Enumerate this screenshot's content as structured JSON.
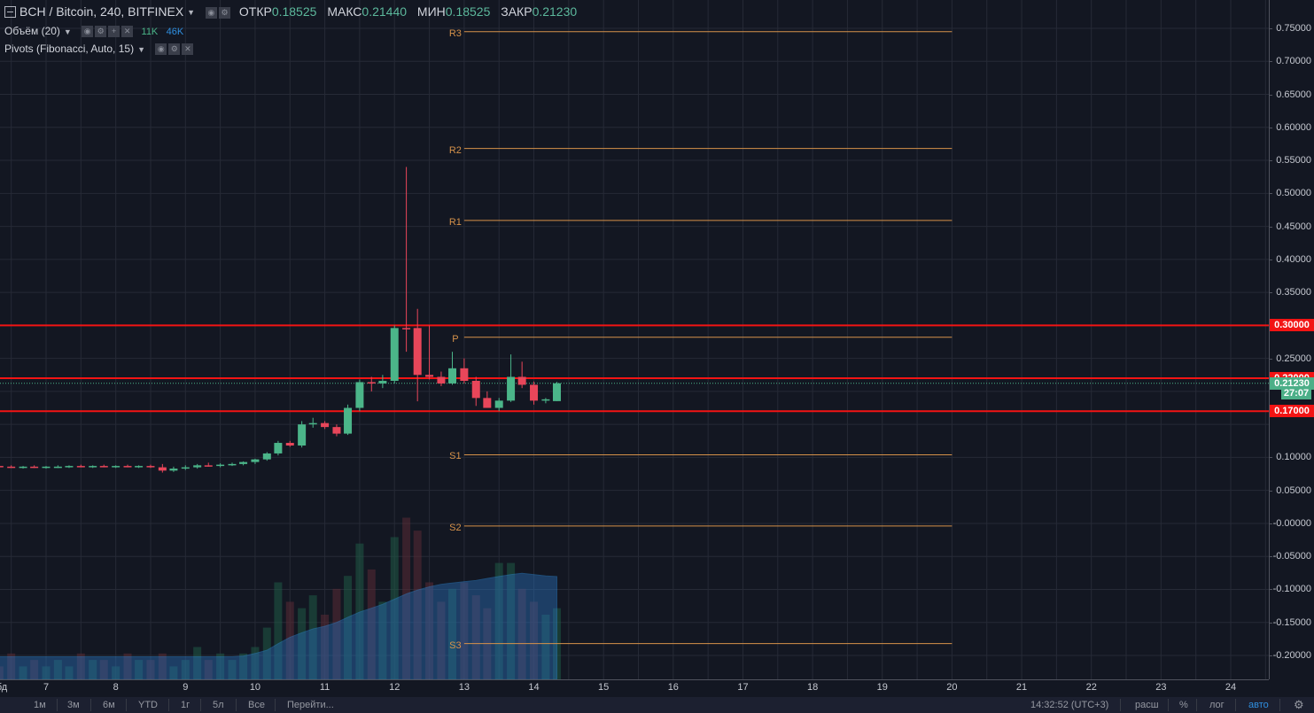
{
  "legend": {
    "symbol": "BCH / Bitcoin, 240, BITFINEX",
    "open_label": "ОТКР",
    "open": "0.18525",
    "high_label": "МАКС",
    "high": "0.21440",
    "low_label": "МИН",
    "low": "0.18525",
    "close_label": "ЗАКР",
    "close": "0.21230"
  },
  "indicators": {
    "volume_name": "Объём (20)",
    "volume_val1": "11K",
    "volume_val2": "46K",
    "pivots_name": "Pivots (Fibonacci, Auto, 15)"
  },
  "price_axis": [
    "0.75000",
    "0.70000",
    "0.65000",
    "0.60000",
    "0.55000",
    "0.50000",
    "0.45000",
    "0.40000",
    "0.35000",
    "0.25000",
    "0.10000",
    "0.05000",
    "-0.00000",
    "-0.05000",
    "-0.10000",
    "-0.15000",
    "-0.20000"
  ],
  "price_labels": [
    {
      "text": "0.30000",
      "value": 0.3,
      "color": "#f21414"
    },
    {
      "text": "0.22000",
      "value": 0.22,
      "color": "#f21414"
    },
    {
      "text": "0.21230",
      "value": 0.2123,
      "color": "#4caf88"
    },
    {
      "text": "27:07",
      "value": 0.197,
      "color": "#4caf88"
    },
    {
      "text": "0.17000",
      "value": 0.17,
      "color": "#f21414"
    }
  ],
  "time_axis": [
    "7",
    "8",
    "9",
    "10",
    "11",
    "12",
    "13",
    "14",
    "15",
    "16",
    "17",
    "18",
    "19",
    "20",
    "21",
    "22",
    "23",
    "24"
  ],
  "time_axis_partial": "бд",
  "pivots": [
    {
      "label": "R3",
      "value": 0.745
    },
    {
      "label": "R2",
      "value": 0.568
    },
    {
      "label": "R1",
      "value": 0.459
    },
    {
      "label": "P",
      "value": 0.282
    },
    {
      "label": "S1",
      "value": 0.104
    },
    {
      "label": "S2",
      "value": -0.004
    },
    {
      "label": "S3",
      "value": -0.182
    }
  ],
  "hlines": [
    0.3,
    0.22,
    0.17
  ],
  "colors": {
    "up": "#4bb589",
    "down": "#e8465a",
    "hline": "#f21414",
    "pivot": "#d6924a",
    "grid": "#262a36"
  },
  "bottom_bar": {
    "ranges": [
      "1м",
      "3м",
      "6м",
      "YTD",
      "1г",
      "5л",
      "Все"
    ],
    "goto": "Перейти...",
    "time": "14:32:52 (UTC+3)",
    "opt_ext": "расш",
    "opt_pct": "%",
    "opt_log": "лог",
    "opt_auto": "авто"
  },
  "chart_data": {
    "type": "candlestick",
    "x_unit": "day",
    "candles": [
      {
        "t": 6.0,
        "o": 0.086,
        "h": 0.088,
        "l": 0.084,
        "c": 0.086
      },
      {
        "t": 6.17,
        "o": 0.086,
        "h": 0.088,
        "l": 0.084,
        "c": 0.087
      },
      {
        "t": 6.33,
        "o": 0.087,
        "h": 0.089,
        "l": 0.085,
        "c": 0.086
      },
      {
        "t": 6.5,
        "o": 0.086,
        "h": 0.088,
        "l": 0.084,
        "c": 0.085
      },
      {
        "t": 6.67,
        "o": 0.085,
        "h": 0.087,
        "l": 0.083,
        "c": 0.086
      },
      {
        "t": 6.83,
        "o": 0.086,
        "h": 0.088,
        "l": 0.084,
        "c": 0.085
      },
      {
        "t": 7.0,
        "o": 0.085,
        "h": 0.087,
        "l": 0.083,
        "c": 0.086
      },
      {
        "t": 7.17,
        "o": 0.086,
        "h": 0.088,
        "l": 0.084,
        "c": 0.086
      },
      {
        "t": 7.33,
        "o": 0.086,
        "h": 0.088,
        "l": 0.084,
        "c": 0.087
      },
      {
        "t": 7.5,
        "o": 0.087,
        "h": 0.089,
        "l": 0.085,
        "c": 0.086
      },
      {
        "t": 7.67,
        "o": 0.086,
        "h": 0.088,
        "l": 0.084,
        "c": 0.087
      },
      {
        "t": 7.83,
        "o": 0.087,
        "h": 0.089,
        "l": 0.085,
        "c": 0.086
      },
      {
        "t": 8.0,
        "o": 0.086,
        "h": 0.088,
        "l": 0.084,
        "c": 0.087
      },
      {
        "t": 8.17,
        "o": 0.087,
        "h": 0.089,
        "l": 0.085,
        "c": 0.086
      },
      {
        "t": 8.33,
        "o": 0.086,
        "h": 0.088,
        "l": 0.084,
        "c": 0.087
      },
      {
        "t": 8.5,
        "o": 0.087,
        "h": 0.089,
        "l": 0.084,
        "c": 0.085
      },
      {
        "t": 8.67,
        "o": 0.085,
        "h": 0.09,
        "l": 0.077,
        "c": 0.08
      },
      {
        "t": 8.83,
        "o": 0.08,
        "h": 0.086,
        "l": 0.078,
        "c": 0.083
      },
      {
        "t": 9.0,
        "o": 0.083,
        "h": 0.088,
        "l": 0.081,
        "c": 0.085
      },
      {
        "t": 9.17,
        "o": 0.085,
        "h": 0.09,
        "l": 0.083,
        "c": 0.088
      },
      {
        "t": 9.33,
        "o": 0.088,
        "h": 0.092,
        "l": 0.086,
        "c": 0.087
      },
      {
        "t": 9.5,
        "o": 0.087,
        "h": 0.091,
        "l": 0.085,
        "c": 0.089
      },
      {
        "t": 9.67,
        "o": 0.089,
        "h": 0.092,
        "l": 0.087,
        "c": 0.09
      },
      {
        "t": 9.83,
        "o": 0.09,
        "h": 0.094,
        "l": 0.088,
        "c": 0.093
      },
      {
        "t": 10.0,
        "o": 0.093,
        "h": 0.098,
        "l": 0.09,
        "c": 0.097
      },
      {
        "t": 10.17,
        "o": 0.097,
        "h": 0.108,
        "l": 0.095,
        "c": 0.106
      },
      {
        "t": 10.33,
        "o": 0.106,
        "h": 0.125,
        "l": 0.103,
        "c": 0.122
      },
      {
        "t": 10.5,
        "o": 0.122,
        "h": 0.125,
        "l": 0.116,
        "c": 0.118
      },
      {
        "t": 10.67,
        "o": 0.118,
        "h": 0.155,
        "l": 0.115,
        "c": 0.15
      },
      {
        "t": 10.83,
        "o": 0.15,
        "h": 0.16,
        "l": 0.145,
        "c": 0.152
      },
      {
        "t": 11.0,
        "o": 0.152,
        "h": 0.155,
        "l": 0.143,
        "c": 0.146
      },
      {
        "t": 11.17,
        "o": 0.146,
        "h": 0.15,
        "l": 0.132,
        "c": 0.136
      },
      {
        "t": 11.33,
        "o": 0.136,
        "h": 0.18,
        "l": 0.134,
        "c": 0.175
      },
      {
        "t": 11.5,
        "o": 0.175,
        "h": 0.218,
        "l": 0.17,
        "c": 0.214
      },
      {
        "t": 11.67,
        "o": 0.214,
        "h": 0.222,
        "l": 0.2,
        "c": 0.212
      },
      {
        "t": 11.83,
        "o": 0.212,
        "h": 0.225,
        "l": 0.205,
        "c": 0.216
      },
      {
        "t": 12.0,
        "o": 0.216,
        "h": 0.3,
        "l": 0.212,
        "c": 0.296
      },
      {
        "t": 12.17,
        "o": 0.296,
        "h": 0.54,
        "l": 0.26,
        "c": 0.295
      },
      {
        "t": 12.33,
        "o": 0.296,
        "h": 0.325,
        "l": 0.185,
        "c": 0.225
      },
      {
        "t": 12.5,
        "o": 0.225,
        "h": 0.3,
        "l": 0.218,
        "c": 0.222
      },
      {
        "t": 12.67,
        "o": 0.222,
        "h": 0.23,
        "l": 0.208,
        "c": 0.212
      },
      {
        "t": 12.83,
        "o": 0.212,
        "h": 0.26,
        "l": 0.21,
        "c": 0.235
      },
      {
        "t": 13.0,
        "o": 0.235,
        "h": 0.25,
        "l": 0.212,
        "c": 0.216
      },
      {
        "t": 13.17,
        "o": 0.216,
        "h": 0.222,
        "l": 0.178,
        "c": 0.19
      },
      {
        "t": 13.33,
        "o": 0.19,
        "h": 0.2,
        "l": 0.175,
        "c": 0.175
      },
      {
        "t": 13.5,
        "o": 0.175,
        "h": 0.19,
        "l": 0.17,
        "c": 0.186
      },
      {
        "t": 13.67,
        "o": 0.186,
        "h": 0.256,
        "l": 0.184,
        "c": 0.222
      },
      {
        "t": 13.83,
        "o": 0.222,
        "h": 0.245,
        "l": 0.205,
        "c": 0.21
      },
      {
        "t": 14.0,
        "o": 0.21,
        "h": 0.215,
        "l": 0.18,
        "c": 0.186
      },
      {
        "t": 14.17,
        "o": 0.186,
        "h": 0.19,
        "l": 0.182,
        "c": 0.188
      },
      {
        "t": 14.33,
        "o": 0.18525,
        "h": 0.2144,
        "l": 0.18525,
        "c": 0.2123
      }
    ],
    "volume_bars_k": [
      8,
      3,
      2,
      4,
      2,
      3,
      2,
      3,
      2,
      4,
      3,
      3,
      2,
      4,
      3,
      3,
      4,
      2,
      3,
      5,
      3,
      4,
      3,
      4,
      5,
      8,
      15,
      12,
      11,
      13,
      10,
      14,
      16,
      21,
      17,
      12,
      22,
      25,
      23,
      15,
      12,
      14,
      15,
      13,
      11,
      18,
      18,
      14,
      12,
      10,
      11
    ],
    "volume_ma_k": [
      4,
      4,
      3.5,
      3.5,
      3.5,
      3.5,
      3.5,
      3.5,
      3.5,
      3.5,
      3.5,
      3.5,
      3.5,
      3.5,
      3.5,
      3.5,
      3.5,
      3.5,
      3.5,
      3.5,
      3.5,
      3.5,
      3.5,
      3.6,
      4,
      4.5,
      5.5,
      6.5,
      7.2,
      7.8,
      8.2,
      8.8,
      9.6,
      10.4,
      11,
      11.6,
      12.4,
      13.2,
      13.8,
      14.3,
      14.7,
      14.9,
      15.1,
      15.3,
      15.6,
      15.9,
      16.2,
      16.4,
      16.2,
      16.0,
      15.9
    ]
  }
}
